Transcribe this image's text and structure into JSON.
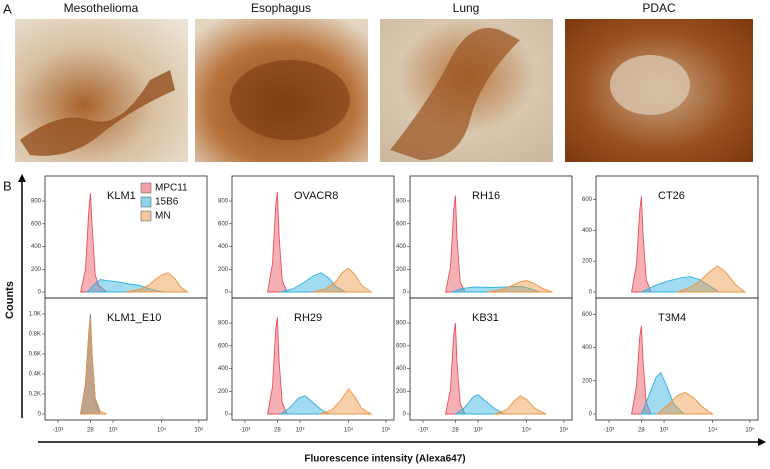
{
  "panel_a": {
    "label": "A",
    "images": [
      {
        "title": "Mesothelioma"
      },
      {
        "title": "Esophagus"
      },
      {
        "title": "Lung"
      },
      {
        "title": "PDAC"
      }
    ]
  },
  "panel_b": {
    "label": "B",
    "y_label": "Counts",
    "x_label": "Fluorescence intensity (Alexa647)"
  },
  "chart_data": [
    {
      "type": "area",
      "title": "KLM1",
      "legend": "top-right",
      "xlim": [
        0,
        100
      ],
      "ylim": [
        0,
        950
      ],
      "yticks": [
        0,
        200,
        400,
        600,
        800
      ],
      "series": [
        {
          "name": "MPC11",
          "color": "#e8505b",
          "x": [
            22,
            25,
            27,
            28,
            29,
            31,
            33,
            38
          ],
          "values": [
            0,
            200,
            700,
            870,
            600,
            150,
            60,
            0
          ]
        },
        {
          "name": "15B6",
          "color": "#2fb0e0",
          "x": [
            26,
            30,
            34,
            38,
            45,
            52,
            58,
            64,
            70,
            74
          ],
          "values": [
            0,
            60,
            110,
            100,
            90,
            70,
            60,
            30,
            10,
            0
          ]
        },
        {
          "name": "MN",
          "color": "#ee9440",
          "x": [
            50,
            58,
            64,
            68,
            72,
            76,
            80,
            84,
            88
          ],
          "values": [
            0,
            20,
            60,
            110,
            150,
            170,
            120,
            40,
            0
          ]
        }
      ]
    },
    {
      "type": "area",
      "title": "OVACR8",
      "xlim": [
        0,
        100
      ],
      "ylim": [
        0,
        950
      ],
      "yticks": [
        0,
        200,
        400,
        600,
        800
      ],
      "series": [
        {
          "color": "#e8505b",
          "x": [
            22,
            25,
            27,
            28,
            29,
            31,
            34
          ],
          "values": [
            0,
            250,
            750,
            880,
            500,
            100,
            0
          ]
        },
        {
          "color": "#2fb0e0",
          "x": [
            30,
            38,
            44,
            50,
            55,
            60,
            64,
            70
          ],
          "values": [
            0,
            30,
            80,
            140,
            170,
            120,
            50,
            0
          ]
        },
        {
          "color": "#ee9440",
          "x": [
            50,
            58,
            64,
            68,
            72,
            76,
            80,
            86
          ],
          "values": [
            0,
            30,
            90,
            170,
            210,
            150,
            60,
            0
          ]
        }
      ]
    },
    {
      "type": "area",
      "title": "RH16",
      "xlim": [
        0,
        100
      ],
      "ylim": [
        0,
        950
      ],
      "yticks": [
        0,
        200,
        400,
        600,
        800
      ],
      "series": [
        {
          "color": "#e8505b",
          "x": [
            22,
            25,
            27,
            28,
            29,
            31,
            34
          ],
          "values": [
            0,
            220,
            720,
            850,
            480,
            90,
            0
          ]
        },
        {
          "color": "#2fb0e0",
          "x": [
            26,
            32,
            40,
            50,
            60,
            68,
            74,
            80
          ],
          "values": [
            0,
            30,
            45,
            40,
            45,
            50,
            30,
            0
          ]
        },
        {
          "color": "#ee9440",
          "x": [
            48,
            56,
            62,
            68,
            72,
            76,
            82,
            88
          ],
          "values": [
            0,
            20,
            50,
            90,
            100,
            80,
            30,
            0
          ]
        }
      ]
    },
    {
      "type": "area",
      "title": "CT26",
      "xlim": [
        0,
        100
      ],
      "ylim": [
        0,
        700
      ],
      "yticks": [
        0,
        200,
        400,
        600
      ],
      "series": [
        {
          "color": "#e8505b",
          "x": [
            22,
            25,
            27,
            28,
            29,
            31,
            34
          ],
          "values": [
            0,
            180,
            520,
            620,
            380,
            80,
            0
          ]
        },
        {
          "color": "#2fb0e0",
          "x": [
            28,
            36,
            44,
            52,
            58,
            64,
            70,
            76
          ],
          "values": [
            0,
            40,
            70,
            90,
            100,
            80,
            40,
            0
          ]
        },
        {
          "color": "#ee9440",
          "x": [
            50,
            58,
            64,
            70,
            75,
            80,
            86,
            92
          ],
          "values": [
            0,
            30,
            70,
            130,
            170,
            130,
            50,
            0
          ]
        }
      ]
    },
    {
      "type": "area",
      "title": "KLM1_E10",
      "xlim": [
        0,
        100
      ],
      "ylim": [
        0,
        1080
      ],
      "xticks": [
        {
          "value": 8,
          "label": "-10³"
        },
        28,
        {
          "value": 42,
          "label": "10³"
        },
        {
          "value": 72,
          "label": "10⁴"
        },
        {
          "value": 95,
          "label": "10⁵"
        }
      ],
      "yticks": [
        0,
        {
          "value": 200,
          "label": "0.2K"
        },
        {
          "value": 400,
          "label": "0.4K"
        },
        {
          "value": 600,
          "label": "0.6K"
        },
        {
          "value": 800,
          "label": "0.8K"
        },
        {
          "value": 1000,
          "label": "1.0K"
        }
      ],
      "series": [
        {
          "color": "#e8505b",
          "x": [
            22,
            25,
            27,
            28,
            29,
            31,
            34
          ],
          "values": [
            0,
            300,
            800,
            1000,
            600,
            150,
            0
          ]
        },
        {
          "color": "#2fb0e0",
          "x": [
            22,
            25,
            27,
            28,
            29,
            31,
            34
          ],
          "values": [
            0,
            280,
            780,
            980,
            590,
            140,
            0
          ]
        },
        {
          "color": "#ee9440",
          "x": [
            22,
            25,
            27,
            28,
            29,
            31,
            34,
            38
          ],
          "values": [
            0,
            260,
            760,
            950,
            580,
            160,
            30,
            0
          ]
        }
      ]
    },
    {
      "type": "area",
      "title": "RH29",
      "xlim": [
        0,
        100
      ],
      "ylim": [
        0,
        950
      ],
      "xticks": [
        {
          "value": 8,
          "label": "-10³"
        },
        28,
        {
          "value": 42,
          "label": "10³"
        },
        {
          "value": 72,
          "label": "10⁴"
        },
        {
          "value": 95,
          "label": "10⁵"
        }
      ],
      "yticks": [
        0,
        200,
        400,
        600,
        800
      ],
      "series": [
        {
          "color": "#e8505b",
          "x": [
            22,
            25,
            27,
            28,
            29,
            31,
            34
          ],
          "values": [
            0,
            240,
            740,
            850,
            480,
            100,
            0
          ]
        },
        {
          "color": "#2fb0e0",
          "x": [
            30,
            36,
            41,
            45,
            50,
            55,
            60
          ],
          "values": [
            0,
            60,
            140,
            160,
            100,
            40,
            0
          ]
        },
        {
          "color": "#ee9440",
          "x": [
            54,
            62,
            67,
            72,
            76,
            80,
            86
          ],
          "values": [
            0,
            40,
            120,
            220,
            150,
            50,
            0
          ]
        }
      ]
    },
    {
      "type": "area",
      "title": "KB31",
      "xlim": [
        0,
        100
      ],
      "ylim": [
        0,
        950
      ],
      "xticks": [
        {
          "value": 8,
          "label": "-10³"
        },
        28,
        {
          "value": 42,
          "label": "10³"
        },
        {
          "value": 72,
          "label": "10⁴"
        },
        {
          "value": 95,
          "label": "10⁵"
        }
      ],
      "yticks": [
        0,
        200,
        400,
        600,
        800
      ],
      "series": [
        {
          "color": "#e8505b",
          "x": [
            22,
            25,
            27,
            28,
            29,
            31,
            34
          ],
          "values": [
            0,
            220,
            700,
            800,
            450,
            90,
            0
          ]
        },
        {
          "color": "#2fb0e0",
          "x": [
            28,
            34,
            39,
            42,
            47,
            52,
            58
          ],
          "values": [
            0,
            60,
            150,
            170,
            110,
            50,
            0
          ]
        },
        {
          "color": "#ee9440",
          "x": [
            52,
            60,
            64,
            68,
            72,
            77,
            84
          ],
          "values": [
            0,
            40,
            110,
            160,
            130,
            50,
            0
          ]
        }
      ]
    },
    {
      "type": "area",
      "title": "T3M4",
      "xlim": [
        0,
        100
      ],
      "ylim": [
        0,
        650
      ],
      "xticks": [
        {
          "value": 8,
          "label": "-10³"
        },
        28,
        {
          "value": 42,
          "label": "10³"
        },
        {
          "value": 72,
          "label": "10⁴"
        },
        {
          "value": 95,
          "label": "10⁵"
        }
      ],
      "yticks": [
        0,
        200,
        400,
        600
      ],
      "series": [
        {
          "color": "#e8505b",
          "x": [
            22,
            25,
            27,
            28,
            29,
            31,
            34
          ],
          "values": [
            0,
            170,
            460,
            530,
            320,
            70,
            0
          ]
        },
        {
          "color": "#2fb0e0",
          "x": [
            28,
            33,
            37,
            40,
            44,
            48,
            54
          ],
          "values": [
            0,
            120,
            220,
            250,
            160,
            60,
            0
          ]
        },
        {
          "color": "#ee9440",
          "x": [
            38,
            45,
            50,
            55,
            60,
            66,
            72
          ],
          "values": [
            0,
            60,
            110,
            130,
            100,
            40,
            0
          ]
        }
      ]
    }
  ]
}
